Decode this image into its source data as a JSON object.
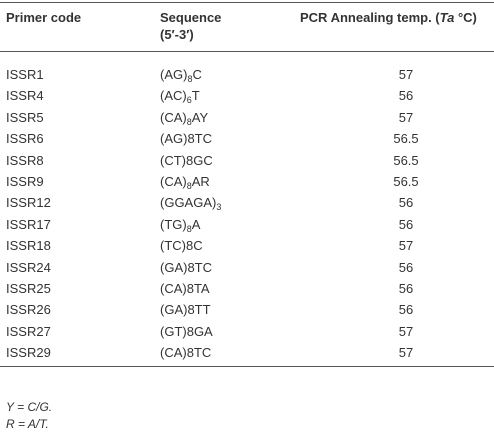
{
  "table": {
    "header": {
      "primer": "Primer code",
      "sequence": [
        "Sequence",
        "(5′-3′)"
      ],
      "temp": [
        "PCR Annealing temp. (",
        "Ta",
        " °C)"
      ]
    },
    "rows": [
      {
        "primer": "ISSR1",
        "sequence": [
          "(AG)",
          "8",
          "C"
        ],
        "temp": 57
      },
      {
        "primer": "ISSR4",
        "sequence": [
          "(AC)",
          "6",
          "T"
        ],
        "temp": 56
      },
      {
        "primer": "ISSR5",
        "sequence": [
          "(CA)",
          "8",
          "AY"
        ],
        "temp": 57
      },
      {
        "primer": "ISSR6",
        "sequence": [
          "(AG)8TC"
        ],
        "temp": 56.5
      },
      {
        "primer": "ISSR8",
        "sequence": [
          "(CT)8GC"
        ],
        "temp": 56.5
      },
      {
        "primer": "ISSR9",
        "sequence": [
          "(CA)",
          "8",
          "AR"
        ],
        "temp": 56.5
      },
      {
        "primer": "ISSR12",
        "sequence": [
          "(GGAGA)",
          "3"
        ],
        "temp": 56
      },
      {
        "primer": "ISSR17",
        "sequence": [
          "(TG)",
          "8",
          "A"
        ],
        "temp": 56
      },
      {
        "primer": "ISSR18",
        "sequence": [
          "(TC)8C"
        ],
        "temp": 57
      },
      {
        "primer": "ISSR24",
        "sequence": [
          "(GA)8TC"
        ],
        "temp": 56
      },
      {
        "primer": "ISSR25",
        "sequence": [
          "(CA)8TA"
        ],
        "temp": 56
      },
      {
        "primer": "ISSR26",
        "sequence": [
          "(GA)8TT"
        ],
        "temp": 56
      },
      {
        "primer": "ISSR27",
        "sequence": [
          "(GT)8GA"
        ],
        "temp": 57
      },
      {
        "primer": "ISSR29",
        "sequence": [
          "(CA)8TC"
        ],
        "temp": 57
      }
    ],
    "notes": [
      "Y = C/G.",
      "R = A/T."
    ]
  }
}
